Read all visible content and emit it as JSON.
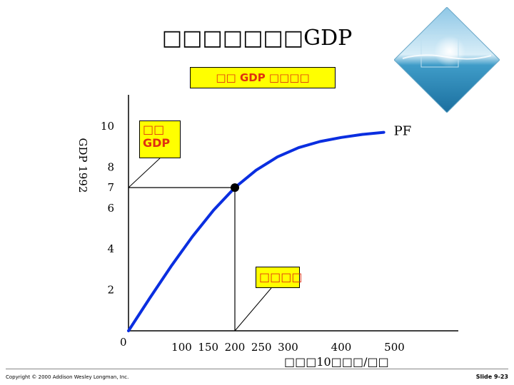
{
  "slide": {
    "title": "□□□□□□□GDP",
    "subtitle": "□□  GDP □□□□",
    "footer_copyright": "Copyright © 2000 Addison Wesley Longman, Inc.",
    "slide_number": "Slide 9-23",
    "photo_icon": "ocean-photo-diamond"
  },
  "chart_data": {
    "type": "line",
    "title": "",
    "xlabel": "□□□10□□□/□□",
    "ylabel": "GDP    1992",
    "x_ticks": [
      "100",
      "150",
      "200",
      "250",
      "300",
      "400",
      "500"
    ],
    "x_tick_values": [
      100,
      150,
      200,
      250,
      300,
      400,
      500
    ],
    "y_ticks": [
      "2",
      "4",
      "6",
      "7",
      "8",
      "10"
    ],
    "y_tick_values": [
      2,
      4,
      6,
      7,
      8,
      10
    ],
    "origin_label": "0",
    "series": [
      {
        "name": "PF",
        "color": "#0a2ee0",
        "x": [
          0,
          40,
          80,
          120,
          160,
          200,
          240,
          280,
          320,
          360,
          400,
          440,
          480
        ],
        "y": [
          0,
          1.6,
          3.15,
          4.6,
          5.9,
          7.0,
          7.85,
          8.5,
          8.95,
          9.25,
          9.45,
          9.6,
          9.7
        ]
      }
    ],
    "highlight_point": {
      "x": 200,
      "y": 7
    },
    "callouts": {
      "gdp": "□□\nGDP",
      "employment": "□□□□"
    },
    "callout_text": {
      "gdp_line1": "□□",
      "gdp_line2": "GDP",
      "employment": "□□□□"
    }
  }
}
